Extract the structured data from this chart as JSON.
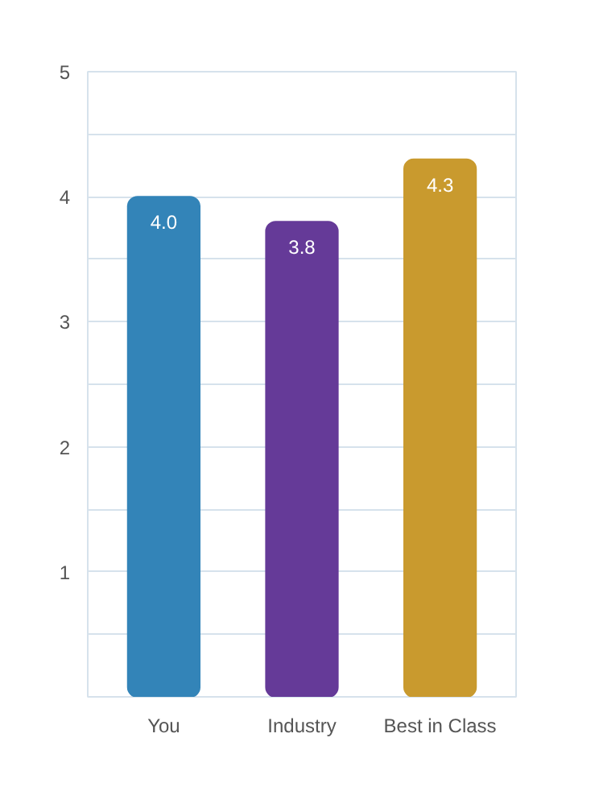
{
  "chart_data": {
    "type": "bar",
    "categories": [
      "You",
      "Industry",
      "Best in Class"
    ],
    "values": [
      4.0,
      3.8,
      4.3
    ],
    "colors": [
      "#3384b8",
      "#653a98",
      "#c99a2e"
    ],
    "value_labels": [
      "4.0",
      "3.8",
      "4.3"
    ],
    "ylim": [
      0,
      5
    ],
    "yticks": [
      {
        "value": 0,
        "label": null
      },
      {
        "value": 0.5,
        "label": null
      },
      1,
      {
        "value": 1.5,
        "label": null
      },
      2,
      {
        "value": 2.5,
        "label": null
      },
      3,
      {
        "value": 3.5,
        "label": null
      },
      4,
      {
        "value": 4.5,
        "label": null
      },
      5
    ],
    "grid": "y"
  }
}
